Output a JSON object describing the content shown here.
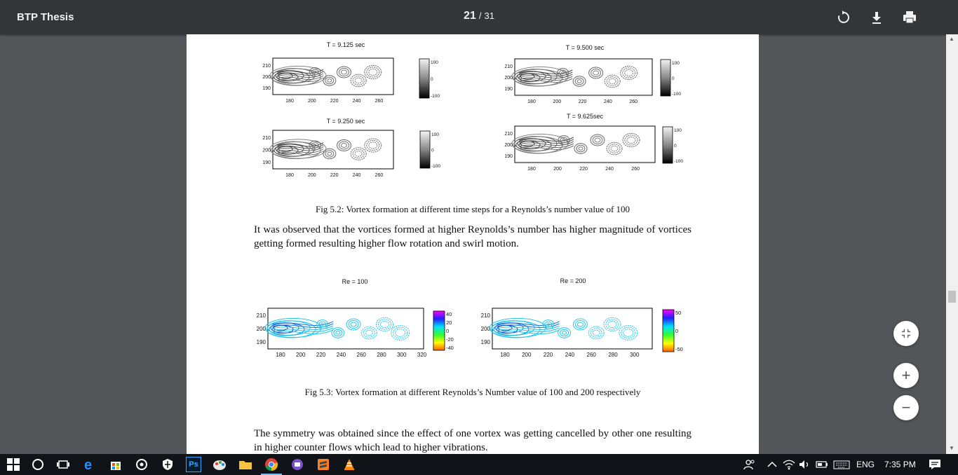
{
  "viewer": {
    "title": "BTP Thesis",
    "current_page": "21",
    "page_sep": "/",
    "total_pages": "31",
    "icons": [
      "rotate-icon",
      "download-icon",
      "print-icon"
    ]
  },
  "document": {
    "fig52": {
      "panels": [
        {
          "title": "T = 9.125 sec",
          "xticks": [
            "180",
            "200",
            "220",
            "240",
            "260"
          ],
          "yticks": [
            "210",
            "200",
            "190"
          ],
          "colorbar": [
            "100",
            "0",
            "-100"
          ]
        },
        {
          "title": "T = 9.500 sec",
          "xticks": [
            "180",
            "200",
            "220",
            "240",
            "260"
          ],
          "yticks": [
            "210",
            "200",
            "190"
          ],
          "colorbar": [
            "100",
            "0",
            "-100"
          ]
        },
        {
          "title": "T = 9.250 sec",
          "xticks": [
            "180",
            "200",
            "220",
            "240",
            "260"
          ],
          "yticks": [
            "210",
            "200",
            "190"
          ],
          "colorbar": [
            "100",
            "0",
            "-100"
          ]
        },
        {
          "title": "T = 9.625sec",
          "xticks": [
            "180",
            "200",
            "220",
            "240",
            "260"
          ],
          "yticks": [
            "210",
            "200",
            "190"
          ],
          "colorbar": [
            "100",
            "0",
            "-100"
          ]
        }
      ],
      "caption": "Fig 5.2: Vortex formation at different time steps for a Reynolds’s number value of 100"
    },
    "paragraph1": "It was observed that the vortices formed at higher Reynolds’s number has higher magnitude of vortices getting formed resulting higher flow rotation and swirl motion.",
    "fig53": {
      "panels": [
        {
          "title": "Re = 100",
          "xticks": [
            "180",
            "200",
            "220",
            "240",
            "260",
            "280",
            "300",
            "320"
          ],
          "yticks": [
            "210",
            "200",
            "190"
          ],
          "colorbar": [
            "40",
            "20",
            "0",
            "-20",
            "-40"
          ]
        },
        {
          "title": "Re = 200",
          "xticks": [
            "180",
            "200",
            "220",
            "240",
            "260",
            "280",
            "300"
          ],
          "yticks": [
            "210",
            "200",
            "190"
          ],
          "colorbar": [
            "50",
            "0",
            "-50"
          ]
        }
      ],
      "caption": "Fig 5.3: Vortex formation at different Reynolds’s Number value of 100 and 200 respectively"
    },
    "paragraph2": "The symmetry was obtained since the effect of one vortex was getting cancelled by other one resulting in higher counter flows which lead to higher vibrations."
  },
  "zoom_controls": [
    "fit-page-icon",
    "zoom-in-icon",
    "zoom-out-icon"
  ],
  "taskbar": {
    "apps": [
      "windows-start-icon",
      "cortana-icon",
      "task-view-icon",
      "edge-icon",
      "store-icon",
      "media-icon",
      "defender-icon",
      "photoshop-icon",
      "paint-icon",
      "file-explorer-icon",
      "chrome-icon",
      "purple-app-icon",
      "sublime-icon",
      "vlc-icon"
    ],
    "photoshop_label": "Ps",
    "language": "ENG",
    "time": "7:35 PM"
  }
}
